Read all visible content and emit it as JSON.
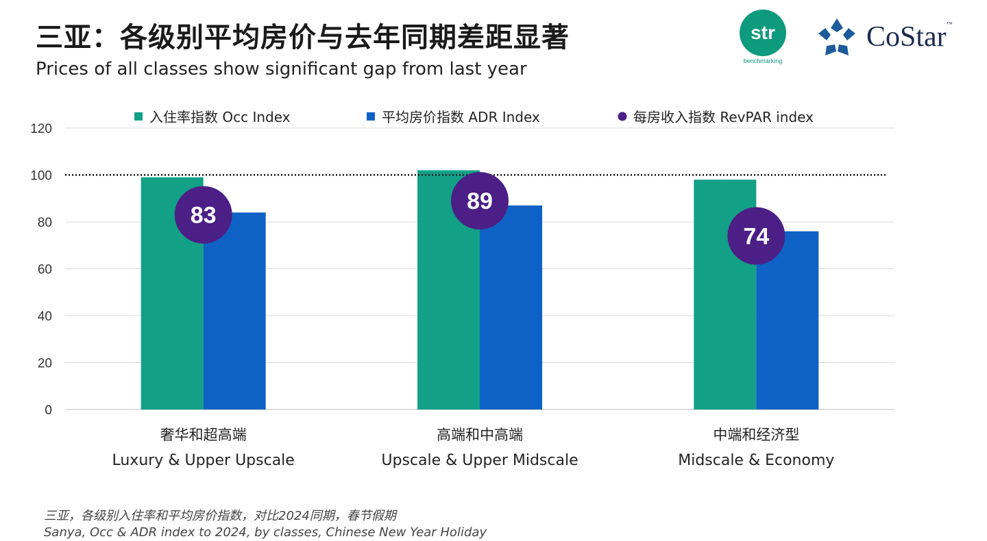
{
  "header": {
    "title_zh": "三亚：各级别平均房价与去年同期差距显著",
    "title_en": "Prices of all classes show significant gap from last year"
  },
  "logos": {
    "str_text": "str",
    "str_sub": "benchmarking",
    "costar_text": "CoStar",
    "costar_tm": "™"
  },
  "colors": {
    "occ": "#12a087",
    "adr": "#0e62c5",
    "revpar": "#4c1f86",
    "grid": "#d9d9d9"
  },
  "chart_data": {
    "type": "bar",
    "title": "",
    "categories": [
      {
        "zh": "奢华和超高端",
        "en": "Luxury & Upper Upscale"
      },
      {
        "zh": "高端和中高端",
        "en": "Upscale & Upper Midscale"
      },
      {
        "zh": "中端和经济型",
        "en": "Midscale & Economy"
      }
    ],
    "series": [
      {
        "name": "入住率指数 Occ Index",
        "kind": "bar",
        "values": [
          99,
          102,
          98
        ]
      },
      {
        "name": "平均房价指数 ADR Index",
        "kind": "bar",
        "values": [
          84,
          87,
          76
        ]
      },
      {
        "name": "每房收入指数 RevPAR index",
        "kind": "marker",
        "values": [
          83,
          89,
          74
        ]
      }
    ],
    "ylim": [
      0,
      120
    ],
    "yticks": [
      0,
      20,
      40,
      60,
      80,
      100,
      120
    ],
    "reference_line": 100,
    "grid": true,
    "legend": "top"
  },
  "footnote": {
    "zh": "三亚，各级别入住率和平均房价指数，对比2024同期，春节假期",
    "en": "Sanya, Occ & ADR index to 2024, by classes, Chinese New Year Holiday"
  }
}
